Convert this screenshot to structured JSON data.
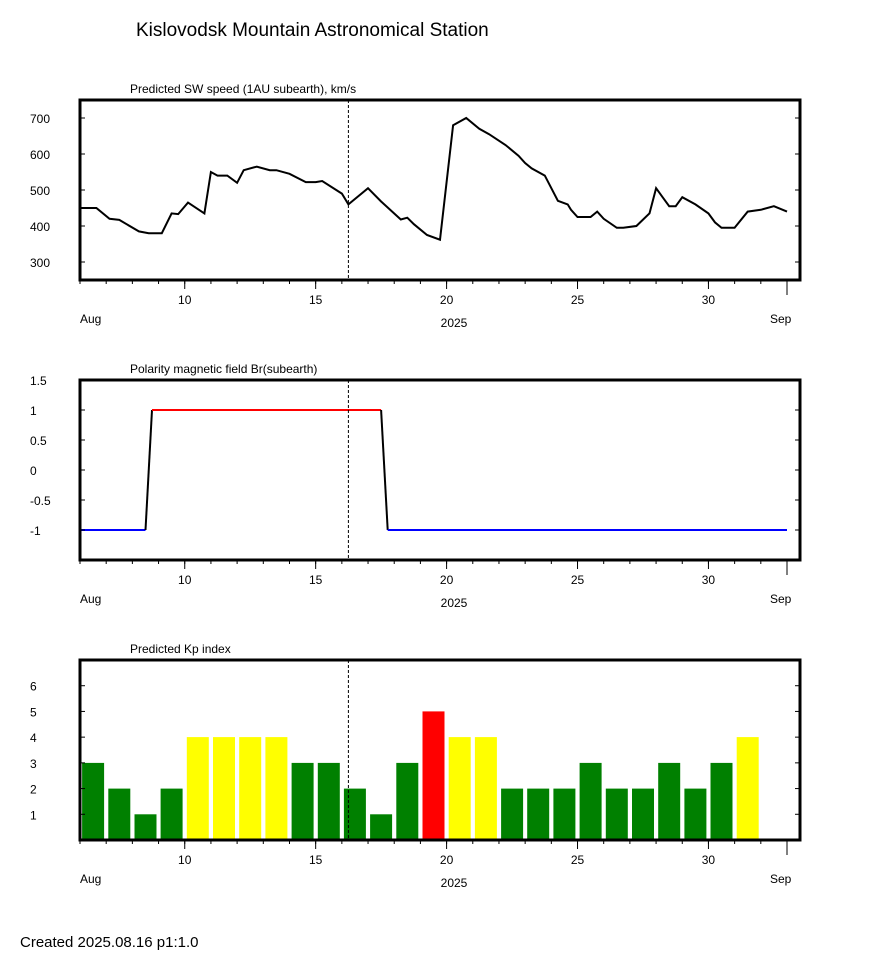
{
  "page": {
    "title": "Kislovodsk Mountain Astronomical Station",
    "footer": "Created  2025.08.16    p1:1.0"
  },
  "colors": {
    "line": "#000000",
    "positive_polarity": "#ff0000",
    "negative_polarity": "#0000ff",
    "kp_quiet": "#008000",
    "kp_active": "#ffff00",
    "kp_storm": "#ff0000"
  },
  "chart_data": [
    {
      "type": "line",
      "title": "Predicted SW speed (1AU subearth), km/s",
      "x_start_label": "Aug",
      "x_center_label": "2025",
      "x_end_label": "Sep",
      "xlim": [
        "2025-08-06",
        "2025-09-02"
      ],
      "x_ticks": [
        {
          "date": "2025-08-10",
          "label": "10"
        },
        {
          "date": "2025-08-15",
          "label": "15"
        },
        {
          "date": "2025-08-20",
          "label": "20"
        },
        {
          "date": "2025-08-25",
          "label": "25"
        },
        {
          "date": "2025-08-30",
          "label": "30"
        }
      ],
      "ylim": [
        250,
        750
      ],
      "y_ticks": [
        300,
        400,
        500,
        600,
        700
      ],
      "current_date_marker": "2025-08-16 06:00",
      "series": [
        {
          "x": [
            "2025-08-06 00:00",
            "2025-08-06 15:00",
            "2025-08-07 03:00",
            "2025-08-07 12:00",
            "2025-08-08 06:00",
            "2025-08-08 15:00",
            "2025-08-09 03:00",
            "2025-08-09 12:00",
            "2025-08-09 18:00",
            "2025-08-10 03:00",
            "2025-08-10 18:00",
            "2025-08-11 00:00",
            "2025-08-11 06:00",
            "2025-08-11 15:00",
            "2025-08-12 00:00",
            "2025-08-12 06:00",
            "2025-08-12 18:00",
            "2025-08-13 06:00",
            "2025-08-13 12:00",
            "2025-08-14 00:00",
            "2025-08-14 15:00",
            "2025-08-15 00:00",
            "2025-08-15 06:00",
            "2025-08-16 00:00",
            "2025-08-16 06:00",
            "2025-08-17 00:00",
            "2025-08-17 12:00",
            "2025-08-18 06:00",
            "2025-08-18 12:00",
            "2025-08-18 18:00",
            "2025-08-19 06:00",
            "2025-08-19 18:00",
            "2025-08-20 06:00",
            "2025-08-20 18:00",
            "2025-08-21 06:00",
            "2025-08-21 15:00",
            "2025-08-22 06:00",
            "2025-08-22 18:00",
            "2025-08-23 00:00",
            "2025-08-23 06:00",
            "2025-08-23 18:00",
            "2025-08-24 06:00",
            "2025-08-24 15:00",
            "2025-08-24 18:00",
            "2025-08-25 00:00",
            "2025-08-25 12:00",
            "2025-08-25 18:00",
            "2025-08-26 00:00",
            "2025-08-26 12:00",
            "2025-08-26 18:00",
            "2025-08-27 06:00",
            "2025-08-27 18:00",
            "2025-08-28 00:00",
            "2025-08-28 06:00",
            "2025-08-28 12:00",
            "2025-08-28 18:00",
            "2025-08-29 00:00",
            "2025-08-29 12:00",
            "2025-08-30 00:00",
            "2025-08-30 06:00",
            "2025-08-30 12:00",
            "2025-08-31 00:00",
            "2025-08-31 12:00",
            "2025-09-01 00:00",
            "2025-09-01 12:00",
            "2025-09-02 00:00"
          ],
          "y": [
            450,
            450,
            420,
            417,
            385,
            380,
            380,
            435,
            433,
            465,
            435,
            550,
            540,
            540,
            520,
            555,
            565,
            555,
            555,
            545,
            522,
            522,
            525,
            490,
            460,
            505,
            468,
            418,
            423,
            405,
            375,
            362,
            680,
            700,
            670,
            655,
            625,
            595,
            575,
            560,
            540,
            470,
            460,
            445,
            425,
            425,
            440,
            420,
            395,
            395,
            400,
            435,
            505,
            480,
            455,
            455,
            480,
            460,
            435,
            410,
            395,
            395,
            440,
            445,
            455,
            440
          ],
          "y_note_unused": true
        }
      ]
    },
    {
      "type": "line",
      "title": "Polarity magnetic field  Br(subearth)",
      "x_start_label": "Aug",
      "x_center_label": "2025",
      "x_end_label": "Sep",
      "xlim": [
        "2025-08-06",
        "2025-09-02"
      ],
      "x_ticks": [
        {
          "date": "2025-08-10",
          "label": "10"
        },
        {
          "date": "2025-08-15",
          "label": "15"
        },
        {
          "date": "2025-08-20",
          "label": "20"
        },
        {
          "date": "2025-08-25",
          "label": "25"
        },
        {
          "date": "2025-08-30",
          "label": "30"
        }
      ],
      "ylim": [
        -1.5,
        1.5
      ],
      "y_ticks": [
        {
          "value": 1.5,
          "label": "1.5"
        },
        {
          "value": 1,
          "label": "1"
        },
        {
          "value": 0.5,
          "label": "0.5"
        },
        {
          "value": 0,
          "label": "0"
        },
        {
          "value": -0.5,
          "label": "-0.5"
        },
        {
          "value": -1,
          "label": "-1"
        }
      ],
      "current_date_marker": "2025-08-16 06:00",
      "series": [
        {
          "x": [
            "2025-08-06 00:00",
            "2025-08-08 12:00",
            "2025-08-08 18:00",
            "2025-08-17 12:00",
            "2025-08-17 18:00",
            "2025-09-02 00:00"
          ],
          "y": [
            -1,
            -1,
            1,
            1,
            -1,
            -1
          ]
        }
      ]
    },
    {
      "type": "bar",
      "title": "Predicted Kp index",
      "x_start_label": "Aug",
      "x_center_label": "2025",
      "x_end_label": "Sep",
      "xlim": [
        "2025-08-06",
        "2025-09-02"
      ],
      "x_ticks": [
        {
          "date": "2025-08-10",
          "label": "10"
        },
        {
          "date": "2025-08-15",
          "label": "15"
        },
        {
          "date": "2025-08-20",
          "label": "20"
        },
        {
          "date": "2025-08-25",
          "label": "25"
        },
        {
          "date": "2025-08-30",
          "label": "30"
        }
      ],
      "ylim": [
        0,
        7
      ],
      "y_ticks": [
        1,
        2,
        3,
        4,
        5,
        6
      ],
      "current_date_marker": "2025-08-16 06:00",
      "categories": [
        "2025-08-06",
        "2025-08-07",
        "2025-08-08",
        "2025-08-09",
        "2025-08-10",
        "2025-08-11",
        "2025-08-12",
        "2025-08-13",
        "2025-08-14",
        "2025-08-15",
        "2025-08-16",
        "2025-08-17",
        "2025-08-18",
        "2025-08-19",
        "2025-08-20",
        "2025-08-21",
        "2025-08-22",
        "2025-08-23",
        "2025-08-24",
        "2025-08-25",
        "2025-08-26",
        "2025-08-27",
        "2025-08-28",
        "2025-08-29",
        "2025-08-30",
        "2025-08-31"
      ],
      "values": [
        3,
        2,
        1,
        2,
        4,
        4,
        4,
        4,
        3,
        3,
        2,
        1,
        3,
        5,
        4,
        4,
        2,
        2,
        2,
        3,
        2,
        2,
        3,
        2,
        3,
        4
      ]
    }
  ]
}
